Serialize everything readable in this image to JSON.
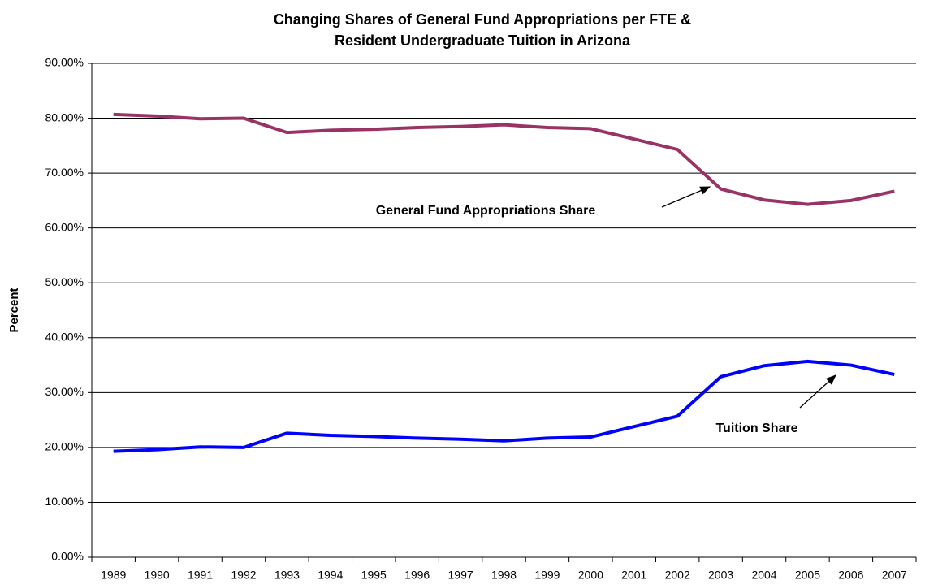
{
  "chart_data": {
    "type": "line",
    "title": "Changing Shares of General Fund Appropriations per FTE &",
    "subtitle": "Resident Undergraduate Tuition in Arizona",
    "y_label": "Percent",
    "categories": [
      "1989",
      "1990",
      "1991",
      "1992",
      "1993",
      "1994",
      "1995",
      "1996",
      "1997",
      "1998",
      "1999",
      "2000",
      "2001",
      "2002",
      "2003",
      "2004",
      "2005",
      "2006",
      "2007"
    ],
    "series": [
      {
        "name": "General Fund Appropriations Share",
        "color": "#993366",
        "values": [
          80.7,
          80.4,
          79.9,
          80.0,
          77.4,
          77.8,
          78.0,
          78.3,
          78.5,
          78.8,
          78.3,
          78.1,
          76.2,
          74.3,
          67.1,
          65.1,
          64.3,
          65.0,
          66.7
        ]
      },
      {
        "name": "Tuition Share",
        "color": "#0000ff",
        "values": [
          19.3,
          19.6,
          20.1,
          20.0,
          22.6,
          22.2,
          22.0,
          21.7,
          21.5,
          21.2,
          21.7,
          21.9,
          23.8,
          25.7,
          32.9,
          34.9,
          35.7,
          35.0,
          33.3
        ]
      }
    ],
    "ylim": [
      0,
      90
    ],
    "yticks": [
      {
        "value": 0,
        "label": "0.00%"
      },
      {
        "value": 10,
        "label": "10.00%"
      },
      {
        "value": 20,
        "label": "20.00%"
      },
      {
        "value": 30,
        "label": "30.00%"
      },
      {
        "value": 40,
        "label": "40.00%"
      },
      {
        "value": 50,
        "label": "50.00%"
      },
      {
        "value": 60,
        "label": "60.00%"
      },
      {
        "value": 70,
        "label": "70.00%"
      },
      {
        "value": 80,
        "label": "80.00%"
      },
      {
        "value": 90,
        "label": "90.00%"
      }
    ],
    "grid": true
  }
}
